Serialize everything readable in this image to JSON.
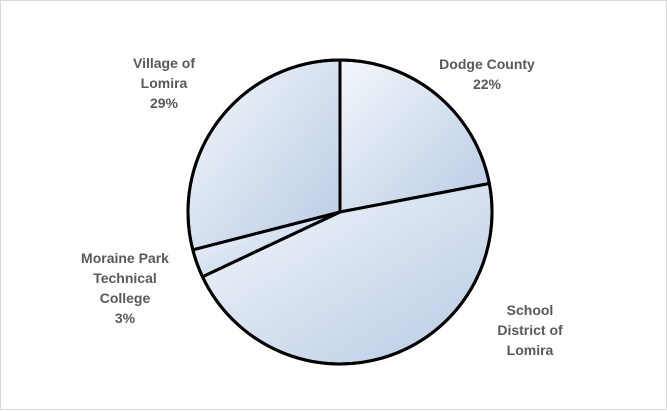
{
  "chart_data": {
    "type": "pie",
    "slices": [
      {
        "label_lines": [
          "Dodge County",
          "22%"
        ],
        "value": 22
      },
      {
        "label_lines": [
          "School",
          "District of",
          "Lomira"
        ],
        "value": 46
      },
      {
        "label_lines": [
          "Moraine Park",
          "Technical",
          "College",
          "3%"
        ],
        "value": 3
      },
      {
        "label_lines": [
          "Village of",
          "Lomira",
          "29%"
        ],
        "value": 29
      }
    ],
    "start_angle_deg": 0,
    "direction": "clockwise",
    "fill_gradient": [
      "#f4f7fb",
      "#b8cbe4"
    ],
    "border_color": "#000000",
    "legend": "none"
  }
}
